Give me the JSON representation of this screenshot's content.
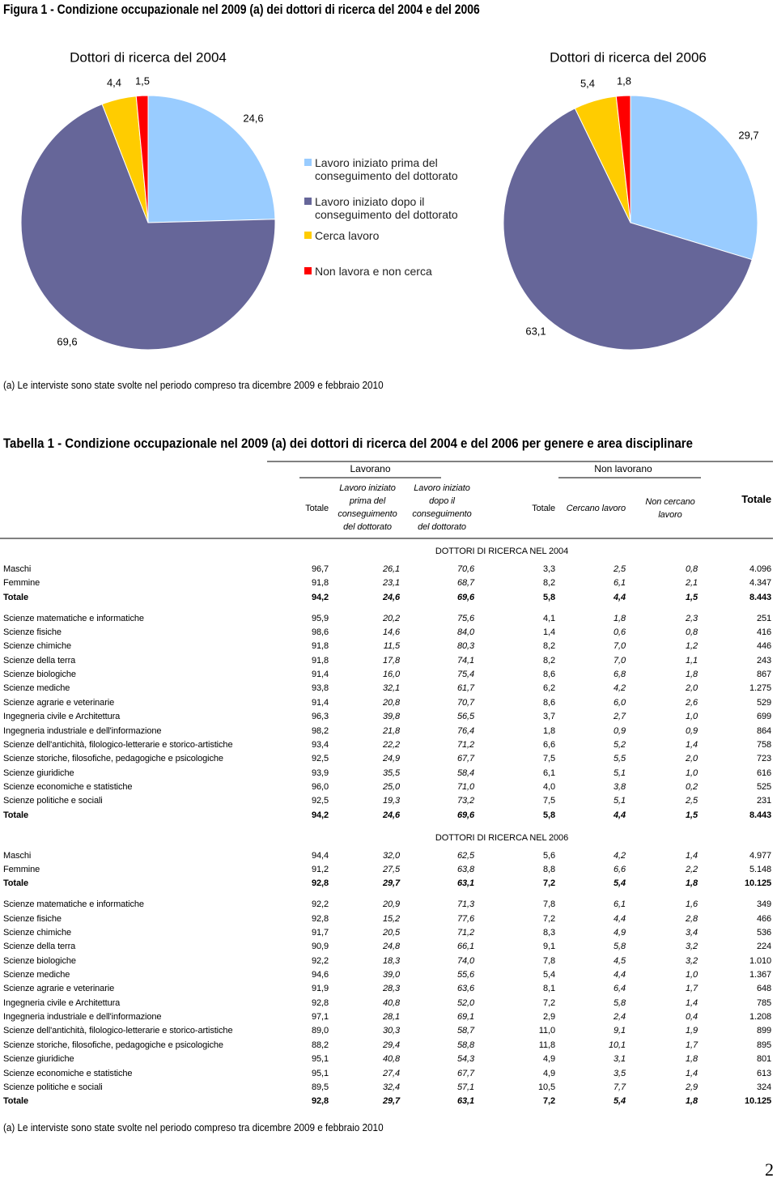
{
  "figure_title": "Figura 1 - Condizione occupazionale nel 2009 (a) dei dottori di ricerca del 2004 e del 2006",
  "chart_data": [
    {
      "type": "pie",
      "title": "Dottori di ricerca del 2004",
      "values": [
        24.6,
        69.6,
        4.4,
        1.5
      ],
      "value_labels": [
        "24,6",
        "69,6",
        "4,4",
        "1,5"
      ]
    },
    {
      "type": "pie",
      "title": "Dottori di ricerca del 2006",
      "values": [
        29.7,
        63.1,
        5.4,
        1.8
      ],
      "value_labels": [
        "29,7",
        "63,1",
        "5,4",
        "1,8"
      ]
    }
  ],
  "legend": {
    "labels": [
      "Lavoro iniziato prima del conseguimento del dottorato",
      "Lavoro iniziato dopo il conseguimento del dottorato",
      "Cerca lavoro",
      "Non lavora e non cerca"
    ],
    "colors": [
      "#99ccff",
      "#666699",
      "#ffcc00",
      "#ff0000"
    ]
  },
  "figure_note": "(a) Le interviste sono state svolte nel periodo compreso tra dicembre 2009 e febbraio 2010",
  "table_title": "Tabella 1 - Condizione occupazionale nel 2009 (a) dei dottori di ricerca del 2004 e del 2006 per genere e area disciplinare",
  "table": {
    "group_headers": [
      "Lavorano",
      "Non lavorano"
    ],
    "columns": [
      "Totale",
      "Lavoro iniziato prima del conseguimento del dottorato",
      "Lavoro iniziato dopo il conseguimento del dottorato",
      "Totale",
      "Cercano lavoro",
      "Non cercano lavoro",
      "Totale"
    ],
    "sections": [
      {
        "title": "DOTTORI DI RICERCA NEL 2004",
        "groups": [
          [
            [
              "Maschi",
              "96,7",
              "26,1",
              "70,6",
              "3,3",
              "2,5",
              "0,8",
              "4.096"
            ],
            [
              "Femmine",
              "91,8",
              "23,1",
              "68,7",
              "8,2",
              "6,1",
              "2,1",
              "4.347"
            ],
            [
              "Totale",
              "94,2",
              "24,6",
              "69,6",
              "5,8",
              "4,4",
              "1,5",
              "8.443"
            ]
          ],
          [
            [
              "Scienze matematiche e informatiche",
              "95,9",
              "20,2",
              "75,6",
              "4,1",
              "1,8",
              "2,3",
              "251"
            ],
            [
              "Scienze fisiche",
              "98,6",
              "14,6",
              "84,0",
              "1,4",
              "0,6",
              "0,8",
              "416"
            ],
            [
              "Scienze chimiche",
              "91,8",
              "11,5",
              "80,3",
              "8,2",
              "7,0",
              "1,2",
              "446"
            ],
            [
              "Scienze della terra",
              "91,8",
              "17,8",
              "74,1",
              "8,2",
              "7,0",
              "1,1",
              "243"
            ],
            [
              "Scienze biologiche",
              "91,4",
              "16,0",
              "75,4",
              "8,6",
              "6,8",
              "1,8",
              "867"
            ],
            [
              "Scienze mediche",
              "93,8",
              "32,1",
              "61,7",
              "6,2",
              "4,2",
              "2,0",
              "1.275"
            ],
            [
              "Scienze agrarie e veterinarie",
              "91,4",
              "20,8",
              "70,7",
              "8,6",
              "6,0",
              "2,6",
              "529"
            ],
            [
              "Ingegneria civile e Architettura",
              "96,3",
              "39,8",
              "56,5",
              "3,7",
              "2,7",
              "1,0",
              "699"
            ],
            [
              "Ingegneria industriale e dell'informazione",
              "98,2",
              "21,8",
              "76,4",
              "1,8",
              "0,9",
              "0,9",
              "864"
            ],
            [
              "Scienze dell'antichità, filologico-letterarie e storico-artistiche",
              "93,4",
              "22,2",
              "71,2",
              "6,6",
              "5,2",
              "1,4",
              "758"
            ],
            [
              "Scienze storiche, filosofiche, pedagogiche e psicologiche",
              "92,5",
              "24,9",
              "67,7",
              "7,5",
              "5,5",
              "2,0",
              "723"
            ],
            [
              "Scienze giuridiche",
              "93,9",
              "35,5",
              "58,4",
              "6,1",
              "5,1",
              "1,0",
              "616"
            ],
            [
              "Scienze economiche e statistiche",
              "96,0",
              "25,0",
              "71,0",
              "4,0",
              "3,8",
              "0,2",
              "525"
            ],
            [
              "Scienze politiche e sociali",
              "92,5",
              "19,3",
              "73,2",
              "7,5",
              "5,1",
              "2,5",
              "231"
            ],
            [
              "Totale",
              "94,2",
              "24,6",
              "69,6",
              "5,8",
              "4,4",
              "1,5",
              "8.443"
            ]
          ]
        ]
      },
      {
        "title": "DOTTORI DI RICERCA NEL 2006",
        "groups": [
          [
            [
              "Maschi",
              "94,4",
              "32,0",
              "62,5",
              "5,6",
              "4,2",
              "1,4",
              "4.977"
            ],
            [
              "Femmine",
              "91,2",
              "27,5",
              "63,8",
              "8,8",
              "6,6",
              "2,2",
              "5.148"
            ],
            [
              "Totale",
              "92,8",
              "29,7",
              "63,1",
              "7,2",
              "5,4",
              "1,8",
              "10.125"
            ]
          ],
          [
            [
              "Scienze matematiche e informatiche",
              "92,2",
              "20,9",
              "71,3",
              "7,8",
              "6,1",
              "1,6",
              "349"
            ],
            [
              "Scienze fisiche",
              "92,8",
              "15,2",
              "77,6",
              "7,2",
              "4,4",
              "2,8",
              "466"
            ],
            [
              "Scienze chimiche",
              "91,7",
              "20,5",
              "71,2",
              "8,3",
              "4,9",
              "3,4",
              "536"
            ],
            [
              "Scienze della terra",
              "90,9",
              "24,8",
              "66,1",
              "9,1",
              "5,8",
              "3,2",
              "224"
            ],
            [
              "Scienze biologiche",
              "92,2",
              "18,3",
              "74,0",
              "7,8",
              "4,5",
              "3,2",
              "1.010"
            ],
            [
              "Scienze mediche",
              "94,6",
              "39,0",
              "55,6",
              "5,4",
              "4,4",
              "1,0",
              "1.367"
            ],
            [
              "Scienze agrarie e veterinarie",
              "91,9",
              "28,3",
              "63,6",
              "8,1",
              "6,4",
              "1,7",
              "648"
            ],
            [
              "Ingegneria civile e Architettura",
              "92,8",
              "40,8",
              "52,0",
              "7,2",
              "5,8",
              "1,4",
              "785"
            ],
            [
              "Ingegneria industriale e dell'informazione",
              "97,1",
              "28,1",
              "69,1",
              "2,9",
              "2,4",
              "0,4",
              "1.208"
            ],
            [
              "Scienze dell'antichità, filologico-letterarie e storico-artistiche",
              "89,0",
              "30,3",
              "58,7",
              "11,0",
              "9,1",
              "1,9",
              "899"
            ],
            [
              "Scienze storiche, filosofiche, pedagogiche e psicologiche",
              "88,2",
              "29,4",
              "58,8",
              "11,8",
              "10,1",
              "1,7",
              "895"
            ],
            [
              "Scienze giuridiche",
              "95,1",
              "40,8",
              "54,3",
              "4,9",
              "3,1",
              "1,8",
              "801"
            ],
            [
              "Scienze economiche e statistiche",
              "95,1",
              "27,4",
              "67,7",
              "4,9",
              "3,5",
              "1,4",
              "613"
            ],
            [
              "Scienze politiche e sociali",
              "89,5",
              "32,4",
              "57,1",
              "10,5",
              "7,7",
              "2,9",
              "324"
            ],
            [
              "Totale",
              "92,8",
              "29,7",
              "63,1",
              "7,2",
              "5,4",
              "1,8",
              "10.125"
            ]
          ]
        ]
      }
    ]
  },
  "table_note": "(a) Le interviste sono state svolte nel periodo compreso tra dicembre 2009 e febbraio 2010",
  "page_number": "2"
}
